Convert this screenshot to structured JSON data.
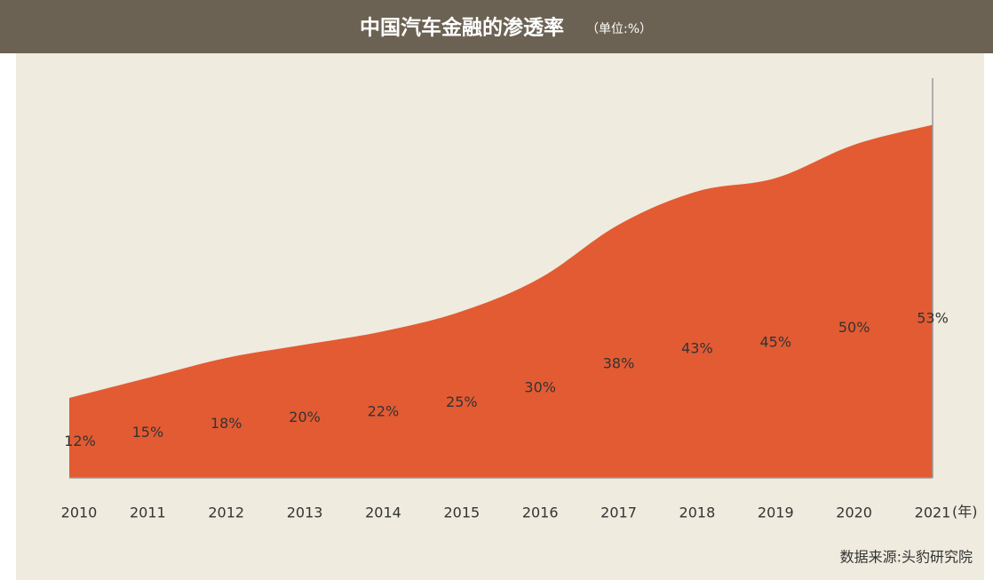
{
  "chart_data": {
    "type": "area",
    "title": "中国汽车金融的渗透率",
    "subtitle": "（单位:%）",
    "categories": [
      "2010",
      "2011",
      "2012",
      "2013",
      "2014",
      "2015",
      "2016",
      "2017",
      "2018",
      "2019",
      "2020",
      "2021"
    ],
    "x_unit": "(年)",
    "values": [
      12,
      15,
      18,
      20,
      22,
      25,
      30,
      38,
      43,
      45,
      50,
      53
    ],
    "value_labels": [
      "12%",
      "15%",
      "18%",
      "20%",
      "22%",
      "25%",
      "30%",
      "38%",
      "43%",
      "45%",
      "50%",
      "53%"
    ],
    "color": "#e35b33",
    "ylim": [
      0,
      60
    ],
    "source": "数据来源:头豹研究院"
  }
}
